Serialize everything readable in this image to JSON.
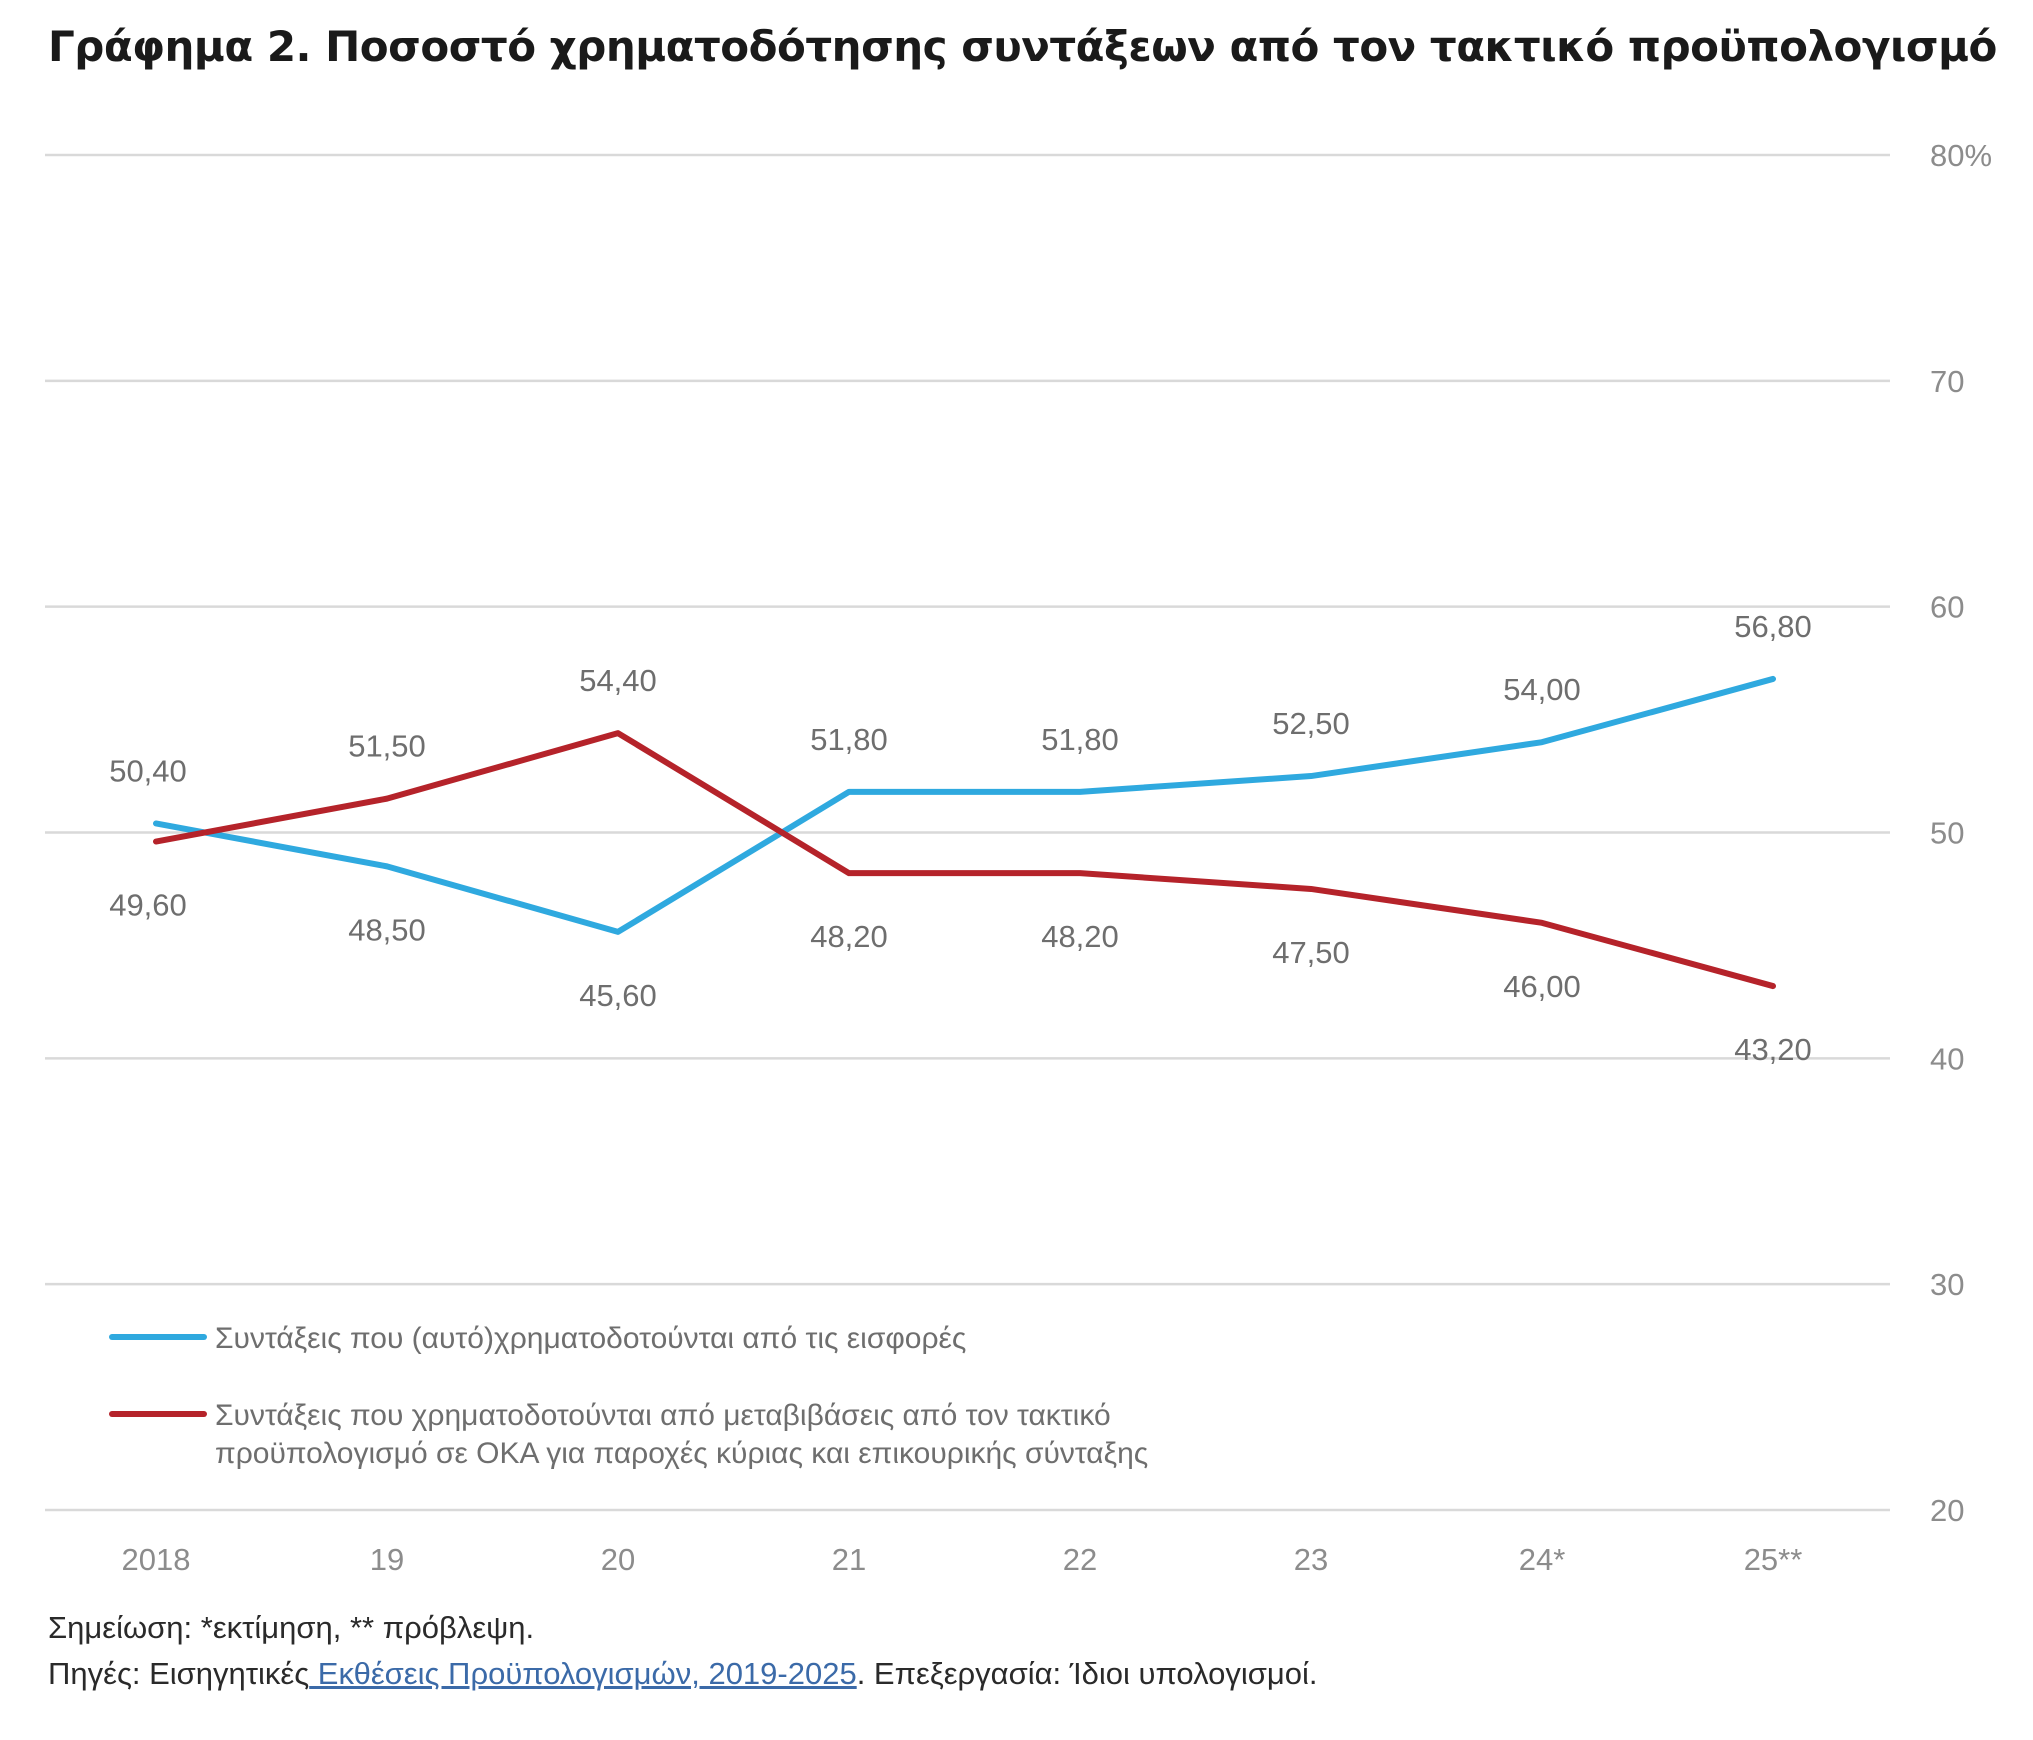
{
  "title": "Γράφημα 2. Ποσοστό χρηματοδότησης συντάξεων από τον τακτικό προϋπολογισμό",
  "note": "Σημείωση: *εκτίμηση, ** πρόβλεψη.",
  "source": {
    "prefix": "Πηγές: Εισηγητικές",
    "link": " Εκθέσεις Προϋπολογισμών, 2019-2025",
    "suffix": ". Επεξεργασία: Ίδιοι υπολογισμοί."
  },
  "colors": {
    "series_blue": "#2fa9df",
    "series_red": "#b5232a",
    "grid": "#d9d9d9",
    "tick_text": "#8c8c8c",
    "label_text": "#6e6e6e"
  },
  "chart_data": {
    "type": "line",
    "categories": [
      "2018",
      "19",
      "20",
      "21",
      "22",
      "23",
      "24*",
      "25**"
    ],
    "yaxis": {
      "position": "right",
      "ylim": [
        20,
        80
      ],
      "ticks": [
        20,
        30,
        40,
        50,
        60,
        70,
        80
      ],
      "tick_labels": [
        "20",
        "30",
        "40",
        "50",
        "60",
        "70",
        "80%"
      ]
    },
    "grid": true,
    "legend_position": "bottom-left",
    "series": [
      {
        "name": "Συντάξεις που (αυτό)χρηματοδοτούνται από τις εισφορές",
        "color": "#2fa9df",
        "values": [
          50.4,
          48.5,
          45.6,
          51.8,
          51.8,
          52.5,
          54.0,
          56.8
        ],
        "labels": [
          "50,40",
          "48,50",
          "45,60",
          "51,80",
          "51,80",
          "52,50",
          "54,00",
          "56,80"
        ]
      },
      {
        "name": "Συντάξεις που χρηματοδοτούνται από μεταβιβάσεις από τον τακτικό προϋπολογισμό σε ΟΚΑ για παροχές κύριας και επικουρικής σύνταξης",
        "name_lines": [
          "Συντάξεις που χρηματοδοτούνται από μεταβιβάσεις από τον τακτικό",
          "προϋπολογισμό σε ΟΚΑ για παροχές κύριας και επικουρικής σύνταξης"
        ],
        "color": "#b5232a",
        "values": [
          49.6,
          51.5,
          54.4,
          48.2,
          48.2,
          47.5,
          46.0,
          43.2
        ],
        "labels": [
          "49,60",
          "51,50",
          "54,40",
          "48,20",
          "48,20",
          "47,50",
          "46,00",
          "43,20"
        ]
      }
    ]
  }
}
